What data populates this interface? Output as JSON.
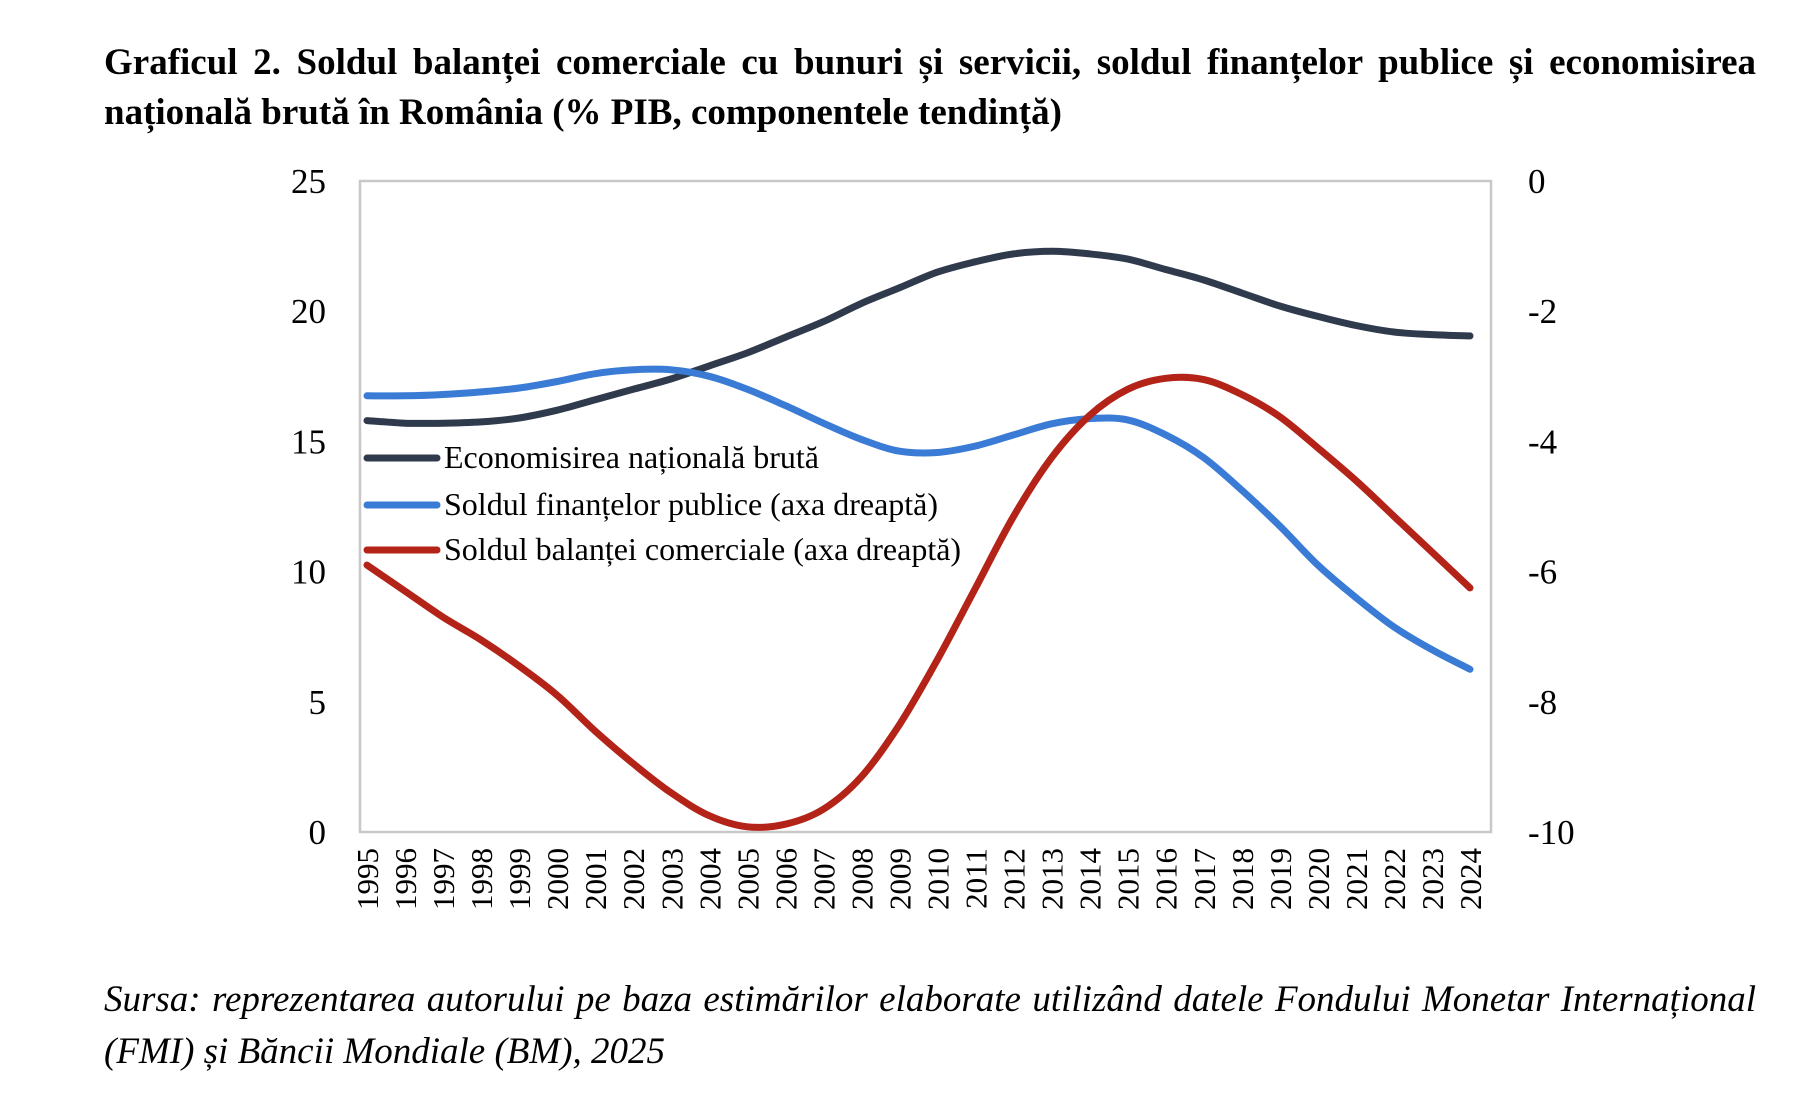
{
  "title": "Graficul 2. Soldul balanței comerciale cu bunuri și servicii, soldul finanțelor publice și economisirea națională brută în România (% PIB, componentele tendință)",
  "source": "Sursa: reprezentarea autorului pe baza estimărilor elaborate utilizând datele Fondului Monetar Internațional (FMI) și Băncii Mondiale (BM), 2025",
  "chart_data": {
    "type": "line",
    "categories": [
      "1995",
      "1996",
      "1997",
      "1998",
      "1999",
      "2000",
      "2001",
      "2002",
      "2003",
      "2004",
      "2005",
      "2006",
      "2007",
      "2008",
      "2009",
      "2010",
      "2011",
      "2012",
      "2013",
      "2014",
      "2015",
      "2016",
      "2017",
      "2018",
      "2019",
      "2020",
      "2021",
      "2022",
      "2023",
      "2024"
    ],
    "y_left": {
      "ylim": [
        0,
        25
      ],
      "ticks": [
        "0",
        "5",
        "10",
        "15",
        "20",
        "25"
      ]
    },
    "y_right": {
      "ylim": [
        -10,
        0
      ],
      "ticks": [
        "-10",
        "-8",
        "-6",
        "-4",
        "-2",
        "0"
      ]
    },
    "grid": false,
    "legend_position": "left, middle of plot",
    "series": [
      {
        "name": "Economisirea națională brută",
        "axis": "left",
        "color": "#2f3a4c",
        "values": [
          15.8,
          15.7,
          15.7,
          15.75,
          15.9,
          16.2,
          16.6,
          17.0,
          17.4,
          17.9,
          18.4,
          19.0,
          19.6,
          20.3,
          20.9,
          21.5,
          21.9,
          22.2,
          22.3,
          22.2,
          22.0,
          21.6,
          21.2,
          20.7,
          20.2,
          19.8,
          19.45,
          19.2,
          19.1,
          19.05
        ]
      },
      {
        "name": "Soldul finanțelor publice (axa dreaptă)",
        "axis": "right",
        "color": "#3a7bd5",
        "values": [
          -3.3,
          -3.3,
          -3.28,
          -3.24,
          -3.18,
          -3.08,
          -2.96,
          -2.9,
          -2.9,
          -3.0,
          -3.2,
          -3.45,
          -3.72,
          -3.97,
          -4.15,
          -4.17,
          -4.07,
          -3.9,
          -3.73,
          -3.65,
          -3.67,
          -3.9,
          -4.25,
          -4.75,
          -5.3,
          -5.9,
          -6.4,
          -6.85,
          -7.2,
          -7.5
        ]
      },
      {
        "name": "Soldul balanței comerciale (axa dreaptă)",
        "axis": "right",
        "color": "#b32318",
        "values": [
          -5.9,
          -6.3,
          -6.7,
          -7.05,
          -7.45,
          -7.9,
          -8.45,
          -8.95,
          -9.4,
          -9.75,
          -9.92,
          -9.88,
          -9.65,
          -9.15,
          -8.35,
          -7.35,
          -6.25,
          -5.15,
          -4.25,
          -3.6,
          -3.2,
          -3.03,
          -3.05,
          -3.28,
          -3.62,
          -4.1,
          -4.6,
          -5.15,
          -5.7,
          -6.25
        ]
      }
    ]
  }
}
